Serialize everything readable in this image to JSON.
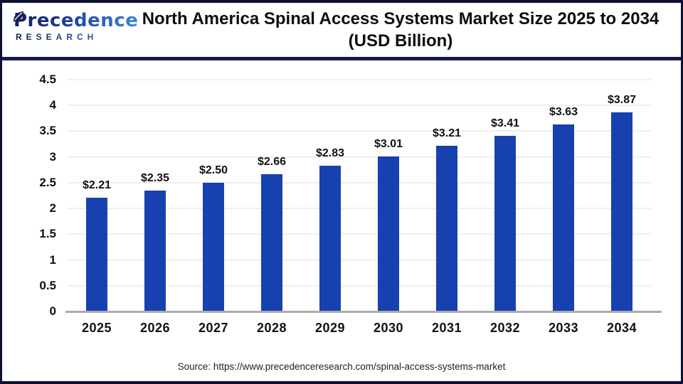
{
  "logo": {
    "brand": "Precedence",
    "sub": "RESEARCH"
  },
  "header": {
    "title_line1": "North America Spinal Access Systems Market Size 2025 to 2034",
    "title_line2": "(USD Billion)"
  },
  "footer": {
    "source": "Source: https://www.precedenceresearch.com/spinal-access-systems-market"
  },
  "colors": {
    "bar": "#1841B0",
    "outer_border": "#0D1233",
    "header_separator": "#151A45",
    "gridline": "#EFEFEF",
    "axis_line": "#ABABAB",
    "title_text": "#0D0D0D",
    "logo_dark": "#131C4E",
    "logo_blue": "#3A86D8"
  },
  "chart_data": {
    "type": "bar",
    "title": "North America Spinal Access Systems Market Size 2025 to 2034 (USD Billion)",
    "unit": "USD Billion",
    "categories": [
      "2025",
      "2026",
      "2027",
      "2028",
      "2029",
      "2030",
      "2031",
      "2032",
      "2033",
      "2034"
    ],
    "values": [
      2.21,
      2.35,
      2.5,
      2.66,
      2.83,
      3.01,
      3.21,
      3.41,
      3.63,
      3.87
    ],
    "value_labels": [
      "$2.21",
      "$2.35",
      "$2.50",
      "$2.66",
      "$2.83",
      "$3.01",
      "$3.21",
      "$3.41",
      "$3.63",
      "$3.87"
    ],
    "ylim": [
      0,
      4.5
    ],
    "ytick_step": 0.5,
    "grid": true,
    "legend": false
  }
}
